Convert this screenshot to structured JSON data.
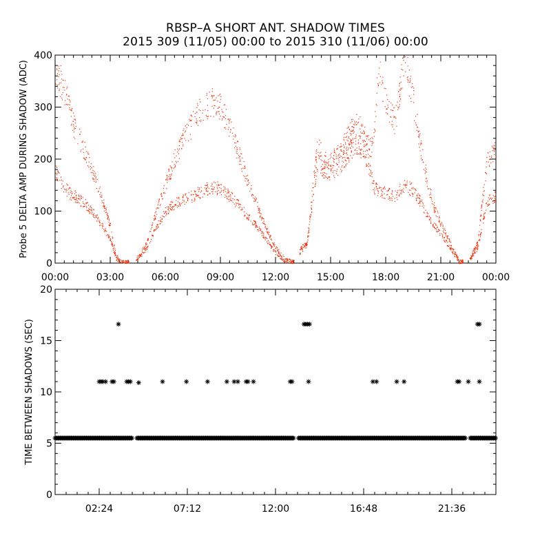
{
  "figure": {
    "title_line1": "RBSP–A SHORT ANT. SHADOW TIMES",
    "title_line2": "2015 309 (11/05) 00:00 to 2015 310 (11/06) 00:00",
    "colors": {
      "upper_points": "#e8300a",
      "lower_points": "#000000",
      "axes": "#000000",
      "background": "#ffffff"
    }
  },
  "chart_data": [
    {
      "type": "scatter",
      "title": "",
      "xlabel": "",
      "ylabel": "Probe 5 DELTA AMP DURING SHADOW (ADC)",
      "xlim": [
        0,
        24
      ],
      "ylim": [
        0,
        400
      ],
      "x_ticks": [
        0,
        3,
        6,
        9,
        12,
        15,
        18,
        21,
        24
      ],
      "x_tick_labels": [
        "00:00",
        "03:00",
        "06:00",
        "09:00",
        "12:00",
        "15:00",
        "18:00",
        "21:00",
        "00:00"
      ],
      "y_ticks": [
        0,
        100,
        200,
        300,
        400
      ],
      "y_tick_labels": [
        "0",
        "100",
        "200",
        "300",
        "400"
      ],
      "x_units": "hours",
      "marker": "dot",
      "series": [
        {
          "name": "upper branch",
          "x": [
            0.0,
            0.5,
            1.0,
            1.5,
            2.0,
            2.5,
            3.0,
            3.3,
            3.6,
            4.0,
            4.5,
            5.0,
            5.5,
            6.0,
            6.5,
            7.0,
            7.5,
            8.0,
            8.5,
            9.0,
            9.5,
            10.0,
            10.5,
            11.0,
            11.5,
            12.0,
            12.5,
            13.0,
            13.4,
            13.7,
            14.0,
            14.3,
            14.6,
            15.0,
            15.5,
            16.0,
            16.5,
            17.0,
            17.3,
            17.6,
            18.0,
            18.5,
            19.0,
            19.5,
            20.0,
            20.5,
            21.0,
            21.5,
            22.0,
            22.5,
            23.0,
            23.5,
            24.0
          ],
          "y": [
            380,
            330,
            265,
            225,
            180,
            130,
            70,
            15,
            2,
            2,
            12,
            40,
            100,
            150,
            200,
            240,
            270,
            300,
            310,
            300,
            260,
            210,
            155,
            110,
            65,
            30,
            8,
            2,
            30,
            40,
            140,
            230,
            200,
            195,
            215,
            250,
            270,
            230,
            220,
            380,
            310,
            270,
            400,
            310,
            200,
            120,
            75,
            40,
            3,
            5,
            40,
            200,
            220
          ]
        },
        {
          "name": "lower branch",
          "x": [
            0.0,
            0.5,
            1.0,
            1.5,
            2.0,
            2.5,
            3.0,
            3.3,
            3.6,
            4.0,
            4.5,
            5.0,
            5.5,
            6.0,
            6.5,
            7.0,
            7.5,
            8.0,
            8.5,
            9.0,
            9.5,
            10.0,
            10.5,
            11.0,
            11.5,
            12.0,
            12.5,
            13.0,
            13.4,
            13.7,
            14.0,
            14.3,
            14.6,
            15.0,
            15.5,
            16.0,
            16.5,
            17.0,
            17.3,
            17.6,
            18.0,
            18.5,
            19.0,
            19.5,
            20.0,
            20.5,
            21.0,
            21.5,
            22.0,
            22.5,
            23.0,
            23.5,
            24.0
          ],
          "y": [
            175,
            145,
            130,
            118,
            100,
            75,
            45,
            10,
            2,
            2,
            10,
            30,
            70,
            100,
            115,
            125,
            130,
            140,
            145,
            145,
            130,
            110,
            90,
            70,
            45,
            20,
            5,
            2,
            25,
            35,
            120,
            200,
            180,
            175,
            190,
            215,
            230,
            200,
            150,
            140,
            135,
            130,
            150,
            140,
            110,
            80,
            55,
            30,
            3,
            5,
            30,
            120,
            130
          ]
        }
      ]
    },
    {
      "type": "scatter",
      "title": "",
      "xlabel": "",
      "ylabel": "TIME BETWEEN SHADOWS (SEC)",
      "xlim": [
        0,
        24
      ],
      "ylim": [
        0,
        20
      ],
      "x_ticks": [
        2.4,
        7.2,
        12.0,
        16.8,
        21.6
      ],
      "x_tick_labels": [
        "02:24",
        "07:12",
        "12:00",
        "16:48",
        "21:36"
      ],
      "y_ticks": [
        0,
        5,
        10,
        15,
        20
      ],
      "y_tick_labels": [
        "0",
        "5",
        "10",
        "15",
        "20"
      ],
      "x_units": "hours",
      "marker": "asterisk",
      "series": [
        {
          "name": "baseline spin period",
          "x_range": [
            0.0,
            24.0
          ],
          "gaps": [
            [
              4.2,
              4.45
            ],
            [
              13.0,
              13.2
            ],
            [
              22.35,
              22.55
            ]
          ],
          "y": 5.5
        },
        {
          "name": "double periods",
          "x": [
            2.4,
            2.5,
            2.6,
            2.75,
            3.1,
            3.2,
            3.9,
            4.0,
            4.1,
            4.55,
            5.85,
            7.15,
            8.3,
            9.35,
            9.75,
            9.95,
            10.4,
            10.5,
            10.8,
            12.8,
            12.9,
            13.8,
            17.3,
            17.5,
            18.6,
            19.0,
            21.9,
            22.0,
            22.5,
            23.1
          ],
          "y": [
            11,
            11,
            11,
            11,
            11,
            11,
            11,
            11,
            11,
            10.9,
            11,
            11,
            11,
            11,
            11,
            11,
            11,
            11,
            11,
            11,
            11,
            11,
            11,
            11,
            11,
            11,
            11,
            11,
            11,
            11
          ]
        },
        {
          "name": "triple periods",
          "x": [
            3.45,
            13.55,
            13.65,
            13.75,
            13.85,
            23.0,
            23.1
          ],
          "y": [
            16.6,
            16.6,
            16.6,
            16.6,
            16.6,
            16.6,
            16.6
          ]
        }
      ]
    }
  ]
}
